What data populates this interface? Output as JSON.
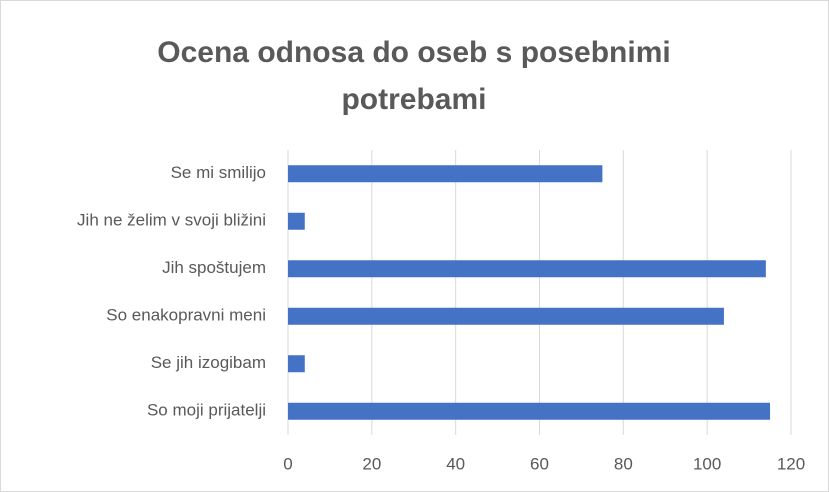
{
  "chart_data": {
    "type": "hbar",
    "title": [
      "Ocena odnosa do oseb s posebnimi",
      "potrebami"
    ],
    "categories": [
      "Se mi smilijo",
      "Jih ne želim v svoji bližini",
      "Jih spoštujem",
      "So enakopravni meni",
      "Se jih izogibam",
      "So moji prijatelji"
    ],
    "values": [
      75,
      4,
      114,
      104,
      4,
      115
    ],
    "color": "#4472c4",
    "xlim": [
      0,
      120
    ],
    "xticks": [
      0,
      20,
      40,
      60,
      80,
      100,
      120
    ],
    "grid": true
  }
}
